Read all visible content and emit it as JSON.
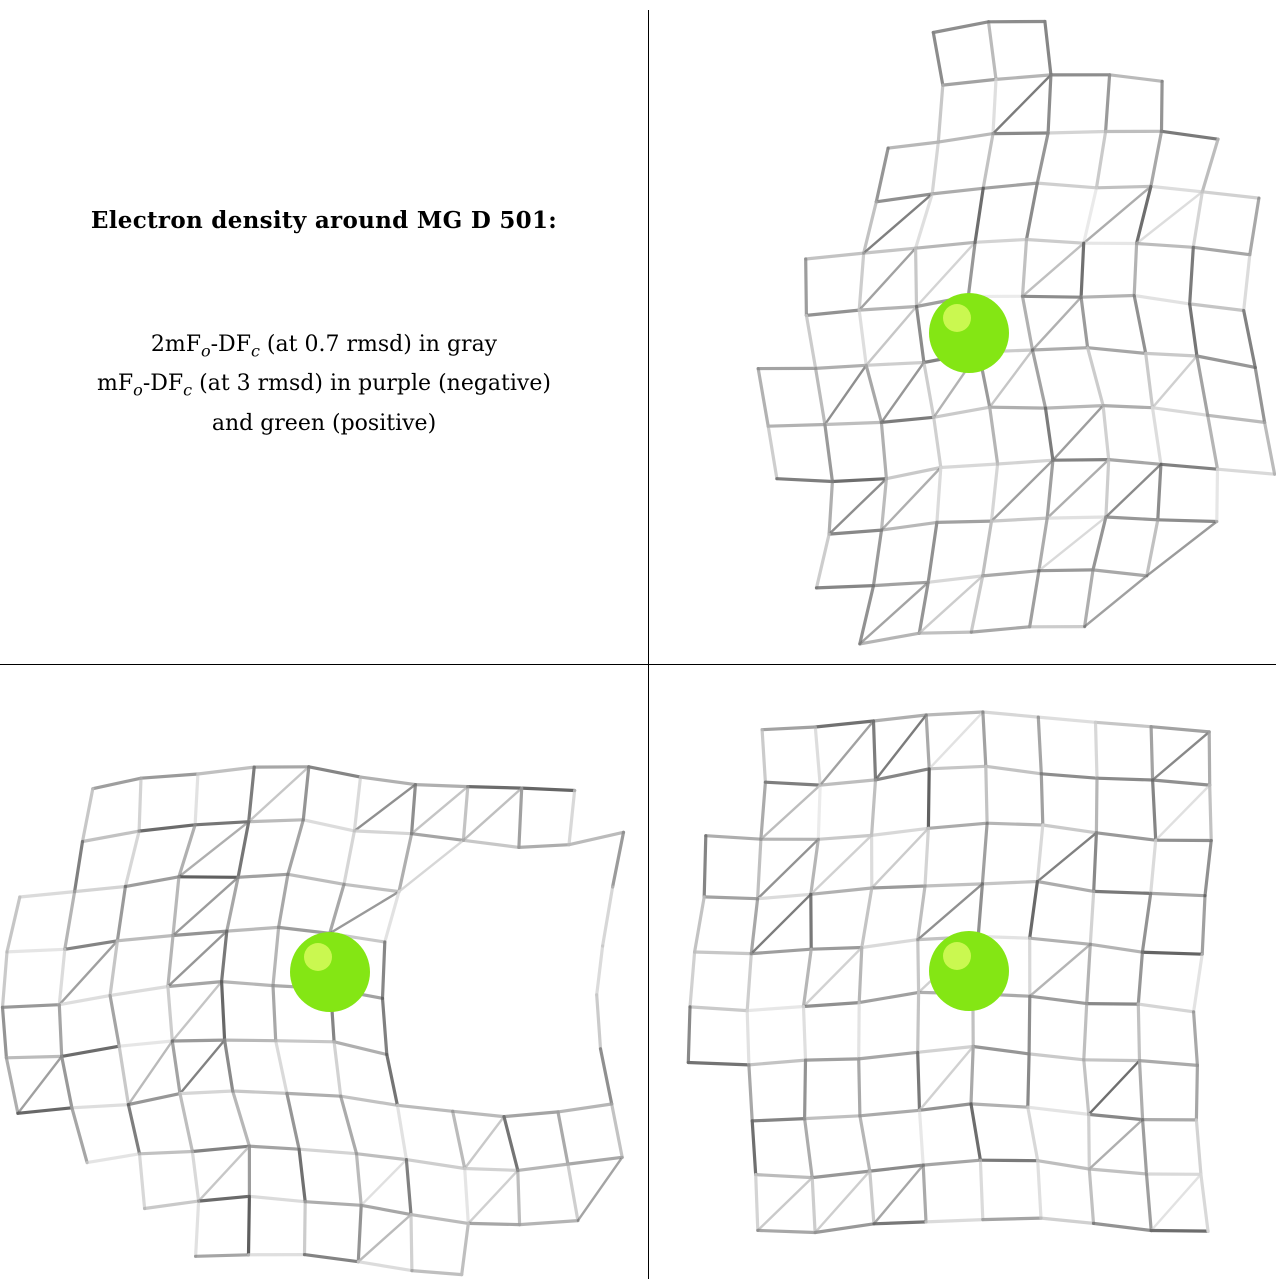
{
  "caption": {
    "title": "Electron density around MG D 501:",
    "legend_lines": [
      "2mFₒ-DFₑ",
      "2mF",
      "o",
      "-DF",
      "c",
      " (at 0.7 rmsd) in gray",
      "mF",
      "o",
      "-DF",
      "c",
      " (at 3 rmsd) in purple (negative)",
      "and green (positive)"
    ]
  },
  "colors": {
    "mesh_dark": "#5a5a5a",
    "mesh_light": "#c8c8c8",
    "sphere": "#84e614",
    "sphere_highlight": "#e8ff6a",
    "border": "#000000"
  },
  "panels": [
    {
      "name": "view-1",
      "atom": "MG"
    },
    {
      "name": "view-2",
      "atom": "MG"
    },
    {
      "name": "view-3",
      "atom": "MG"
    }
  ]
}
